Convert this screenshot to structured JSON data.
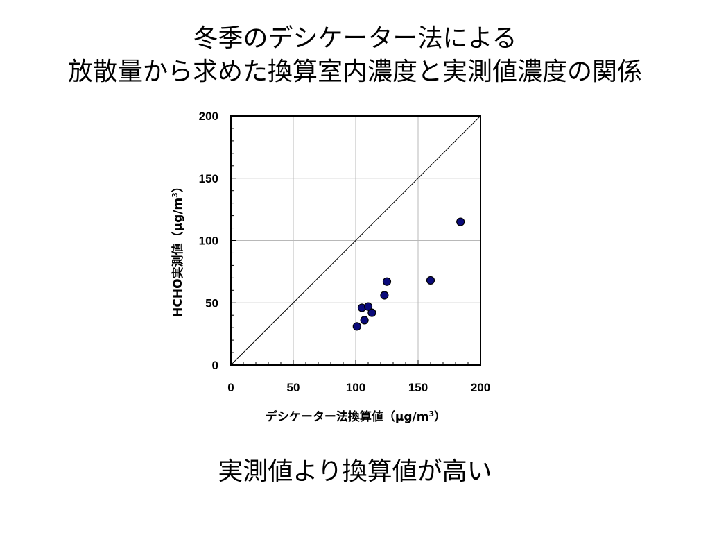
{
  "slide": {
    "title_line1": "冬季のデシケーター法による",
    "title_line2": "放散量から求めた換算室内濃度と実測値濃度の関係",
    "conclusion": "実測値より換算値が高い"
  },
  "chart_data": {
    "type": "scatter",
    "xlabel": "デシケーター法換算値（μg/m3）",
    "ylabel": "HCHO実測値（μg/m3）",
    "xlim": [
      0,
      200
    ],
    "ylim": [
      0,
      200
    ],
    "xticks": [
      "0",
      "50",
      "100",
      "150",
      "200"
    ],
    "yticks": [
      "0",
      "50",
      "100",
      "150",
      "200"
    ],
    "grid": true,
    "reference_line": "y = x",
    "marker_color": "#0a0a7a",
    "points": [
      {
        "x": 101,
        "y": 31
      },
      {
        "x": 105,
        "y": 46
      },
      {
        "x": 107,
        "y": 36
      },
      {
        "x": 110,
        "y": 47
      },
      {
        "x": 113,
        "y": 42
      },
      {
        "x": 123,
        "y": 56
      },
      {
        "x": 125,
        "y": 67
      },
      {
        "x": 160,
        "y": 68
      },
      {
        "x": 184,
        "y": 115
      }
    ]
  }
}
